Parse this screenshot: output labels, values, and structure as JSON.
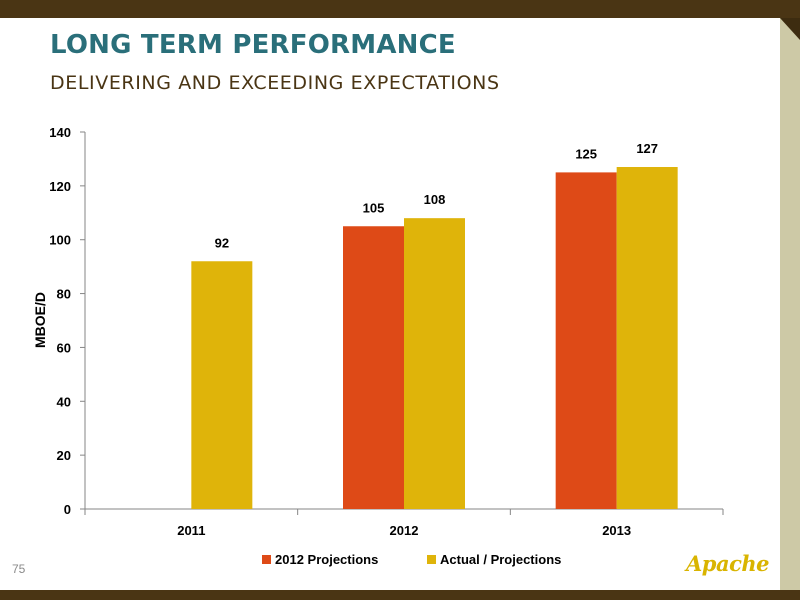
{
  "slide": {
    "title": "LONG TERM PERFORMANCE",
    "subtitle": "DELIVERING AND EXCEEDING EXPECTATIONS",
    "page_number": "75",
    "logo_text": "Apache"
  },
  "colors": {
    "title": "#2a6f7a",
    "subtitle": "#4a3514",
    "frame": "#4a3514",
    "series_projections": "#de4a17",
    "series_actual": "#dfb40a"
  },
  "chart_data": {
    "type": "bar",
    "categories": [
      "2011",
      "2012",
      "2013"
    ],
    "series": [
      {
        "name": "2012 Projections",
        "color": "#de4a17",
        "values": [
          null,
          105,
          125
        ]
      },
      {
        "name": "Actual / Projections",
        "color": "#dfb40a",
        "values": [
          92,
          108,
          127
        ]
      }
    ],
    "data_labels": [
      [
        "",
        "105",
        "125"
      ],
      [
        "92",
        "108",
        "127"
      ]
    ],
    "ylabel": "MBOE/D",
    "xlabel": "",
    "ylim": [
      0,
      140
    ],
    "yticks": [
      "0",
      "20",
      "40",
      "60",
      "80",
      "100",
      "120",
      "140"
    ],
    "grid": false,
    "legend": "bottom"
  }
}
